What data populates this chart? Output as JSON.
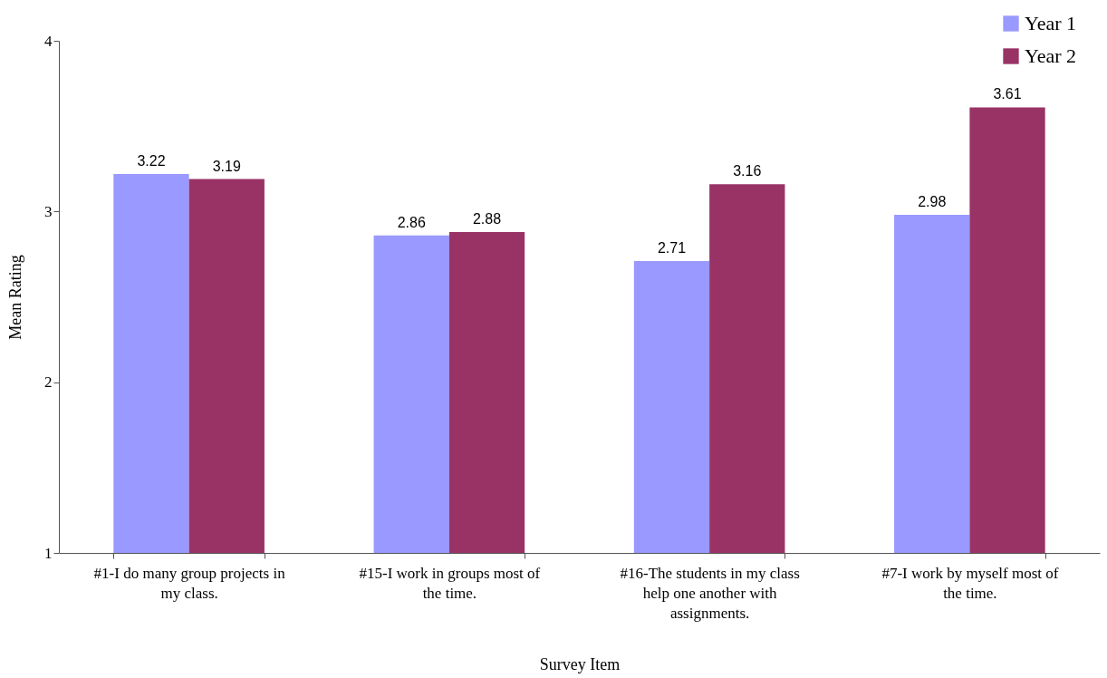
{
  "chart_data": {
    "type": "bar",
    "xlabel": "Survey Item",
    "ylabel": "Mean Rating",
    "categories": [
      "#1-I do many group projects in my class.",
      "#15-I work in groups most of the time.",
      "#16-The students in my class help one another with assignments.",
      "#7-I work by myself most of the time."
    ],
    "series": [
      {
        "name": "Year 1",
        "color": "#9999ff",
        "values": [
          3.22,
          2.86,
          2.71,
          2.98
        ]
      },
      {
        "name": "Year 2",
        "color": "#993366",
        "values": [
          3.19,
          2.88,
          3.16,
          3.61
        ]
      }
    ],
    "ylim": [
      1,
      4
    ],
    "yticks": [
      1,
      2,
      3,
      4
    ],
    "grid": false,
    "legend": "top right",
    "data_labels": true
  }
}
